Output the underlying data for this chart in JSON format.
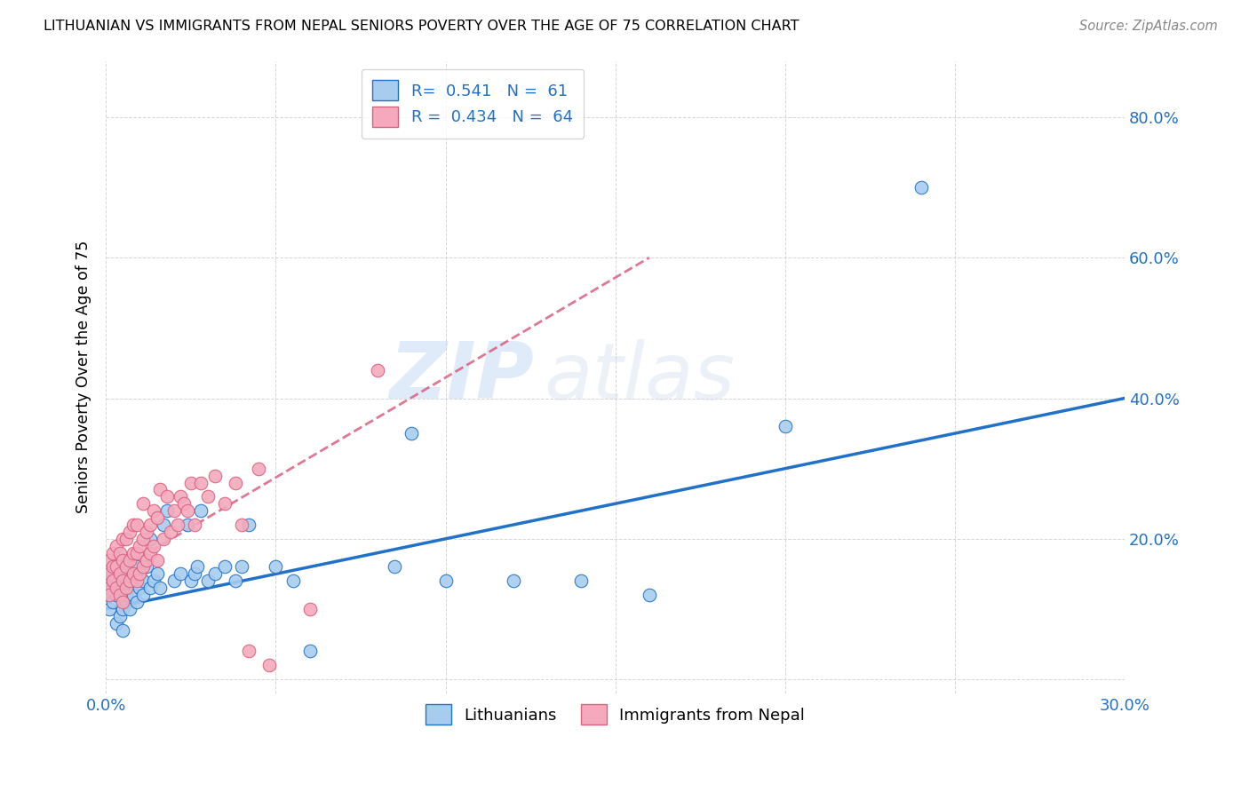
{
  "title": "LITHUANIAN VS IMMIGRANTS FROM NEPAL SENIORS POVERTY OVER THE AGE OF 75 CORRELATION CHART",
  "source": "Source: ZipAtlas.com",
  "ylabel": "Seniors Poverty Over the Age of 75",
  "xlim": [
    0.0,
    0.3
  ],
  "ylim": [
    -0.02,
    0.88
  ],
  "xticks": [
    0.0,
    0.05,
    0.1,
    0.15,
    0.2,
    0.25,
    0.3
  ],
  "xticklabels": [
    "0.0%",
    "",
    "",
    "",
    "",
    "",
    "30.0%"
  ],
  "ytick_vals": [
    0.0,
    0.2,
    0.4,
    0.6,
    0.8
  ],
  "yticklabels": [
    "",
    "20.0%",
    "40.0%",
    "60.0%",
    "80.0%"
  ],
  "blue_R": 0.541,
  "blue_N": 61,
  "pink_R": 0.434,
  "pink_N": 64,
  "blue_color": "#A8CCEE",
  "pink_color": "#F4AABC",
  "blue_line_color": "#2271C8",
  "pink_line_color": "#D96080",
  "legend_label_blue": "Lithuanians",
  "legend_label_pink": "Immigrants from Nepal",
  "blue_x": [
    0.001,
    0.001,
    0.001,
    0.002,
    0.002,
    0.002,
    0.003,
    0.003,
    0.003,
    0.004,
    0.004,
    0.004,
    0.005,
    0.005,
    0.005,
    0.005,
    0.006,
    0.006,
    0.006,
    0.007,
    0.007,
    0.008,
    0.008,
    0.009,
    0.009,
    0.01,
    0.01,
    0.011,
    0.011,
    0.012,
    0.013,
    0.013,
    0.014,
    0.015,
    0.016,
    0.017,
    0.018,
    0.02,
    0.022,
    0.024,
    0.025,
    0.026,
    0.027,
    0.028,
    0.03,
    0.032,
    0.035,
    0.038,
    0.04,
    0.042,
    0.05,
    0.055,
    0.06,
    0.085,
    0.09,
    0.1,
    0.12,
    0.14,
    0.16,
    0.2,
    0.24
  ],
  "blue_y": [
    0.12,
    0.14,
    0.1,
    0.13,
    0.11,
    0.15,
    0.08,
    0.12,
    0.14,
    0.09,
    0.13,
    0.15,
    0.07,
    0.1,
    0.13,
    0.16,
    0.11,
    0.14,
    0.12,
    0.1,
    0.15,
    0.12,
    0.14,
    0.11,
    0.16,
    0.13,
    0.15,
    0.12,
    0.14,
    0.16,
    0.13,
    0.2,
    0.14,
    0.15,
    0.13,
    0.22,
    0.24,
    0.14,
    0.15,
    0.22,
    0.14,
    0.15,
    0.16,
    0.24,
    0.14,
    0.15,
    0.16,
    0.14,
    0.16,
    0.22,
    0.16,
    0.14,
    0.04,
    0.16,
    0.35,
    0.14,
    0.14,
    0.14,
    0.12,
    0.36,
    0.7
  ],
  "pink_x": [
    0.001,
    0.001,
    0.001,
    0.001,
    0.002,
    0.002,
    0.002,
    0.003,
    0.003,
    0.003,
    0.004,
    0.004,
    0.004,
    0.005,
    0.005,
    0.005,
    0.005,
    0.006,
    0.006,
    0.006,
    0.007,
    0.007,
    0.007,
    0.008,
    0.008,
    0.008,
    0.009,
    0.009,
    0.009,
    0.01,
    0.01,
    0.011,
    0.011,
    0.011,
    0.012,
    0.012,
    0.013,
    0.013,
    0.014,
    0.014,
    0.015,
    0.015,
    0.016,
    0.017,
    0.018,
    0.019,
    0.02,
    0.021,
    0.022,
    0.023,
    0.024,
    0.025,
    0.026,
    0.028,
    0.03,
    0.032,
    0.035,
    0.038,
    0.04,
    0.042,
    0.045,
    0.048,
    0.06,
    0.08
  ],
  "pink_y": [
    0.13,
    0.15,
    0.17,
    0.12,
    0.14,
    0.16,
    0.18,
    0.13,
    0.16,
    0.19,
    0.12,
    0.15,
    0.18,
    0.11,
    0.14,
    0.17,
    0.2,
    0.13,
    0.16,
    0.2,
    0.14,
    0.17,
    0.21,
    0.15,
    0.18,
    0.22,
    0.14,
    0.18,
    0.22,
    0.15,
    0.19,
    0.16,
    0.2,
    0.25,
    0.17,
    0.21,
    0.18,
    0.22,
    0.19,
    0.24,
    0.17,
    0.23,
    0.27,
    0.2,
    0.26,
    0.21,
    0.24,
    0.22,
    0.26,
    0.25,
    0.24,
    0.28,
    0.22,
    0.28,
    0.26,
    0.29,
    0.25,
    0.28,
    0.22,
    0.04,
    0.3,
    0.02,
    0.1,
    0.44
  ],
  "blue_trend_x0": 0.0,
  "blue_trend_y0": 0.1,
  "blue_trend_x1": 0.3,
  "blue_trend_y1": 0.4,
  "pink_trend_x0": 0.0,
  "pink_trend_y0": 0.145,
  "pink_trend_x1": 0.16,
  "pink_trend_y1": 0.6,
  "watermark_zip": "ZIP",
  "watermark_atlas": "atlas",
  "background_color": "#FFFFFF",
  "grid_color": "#CCCCCC"
}
